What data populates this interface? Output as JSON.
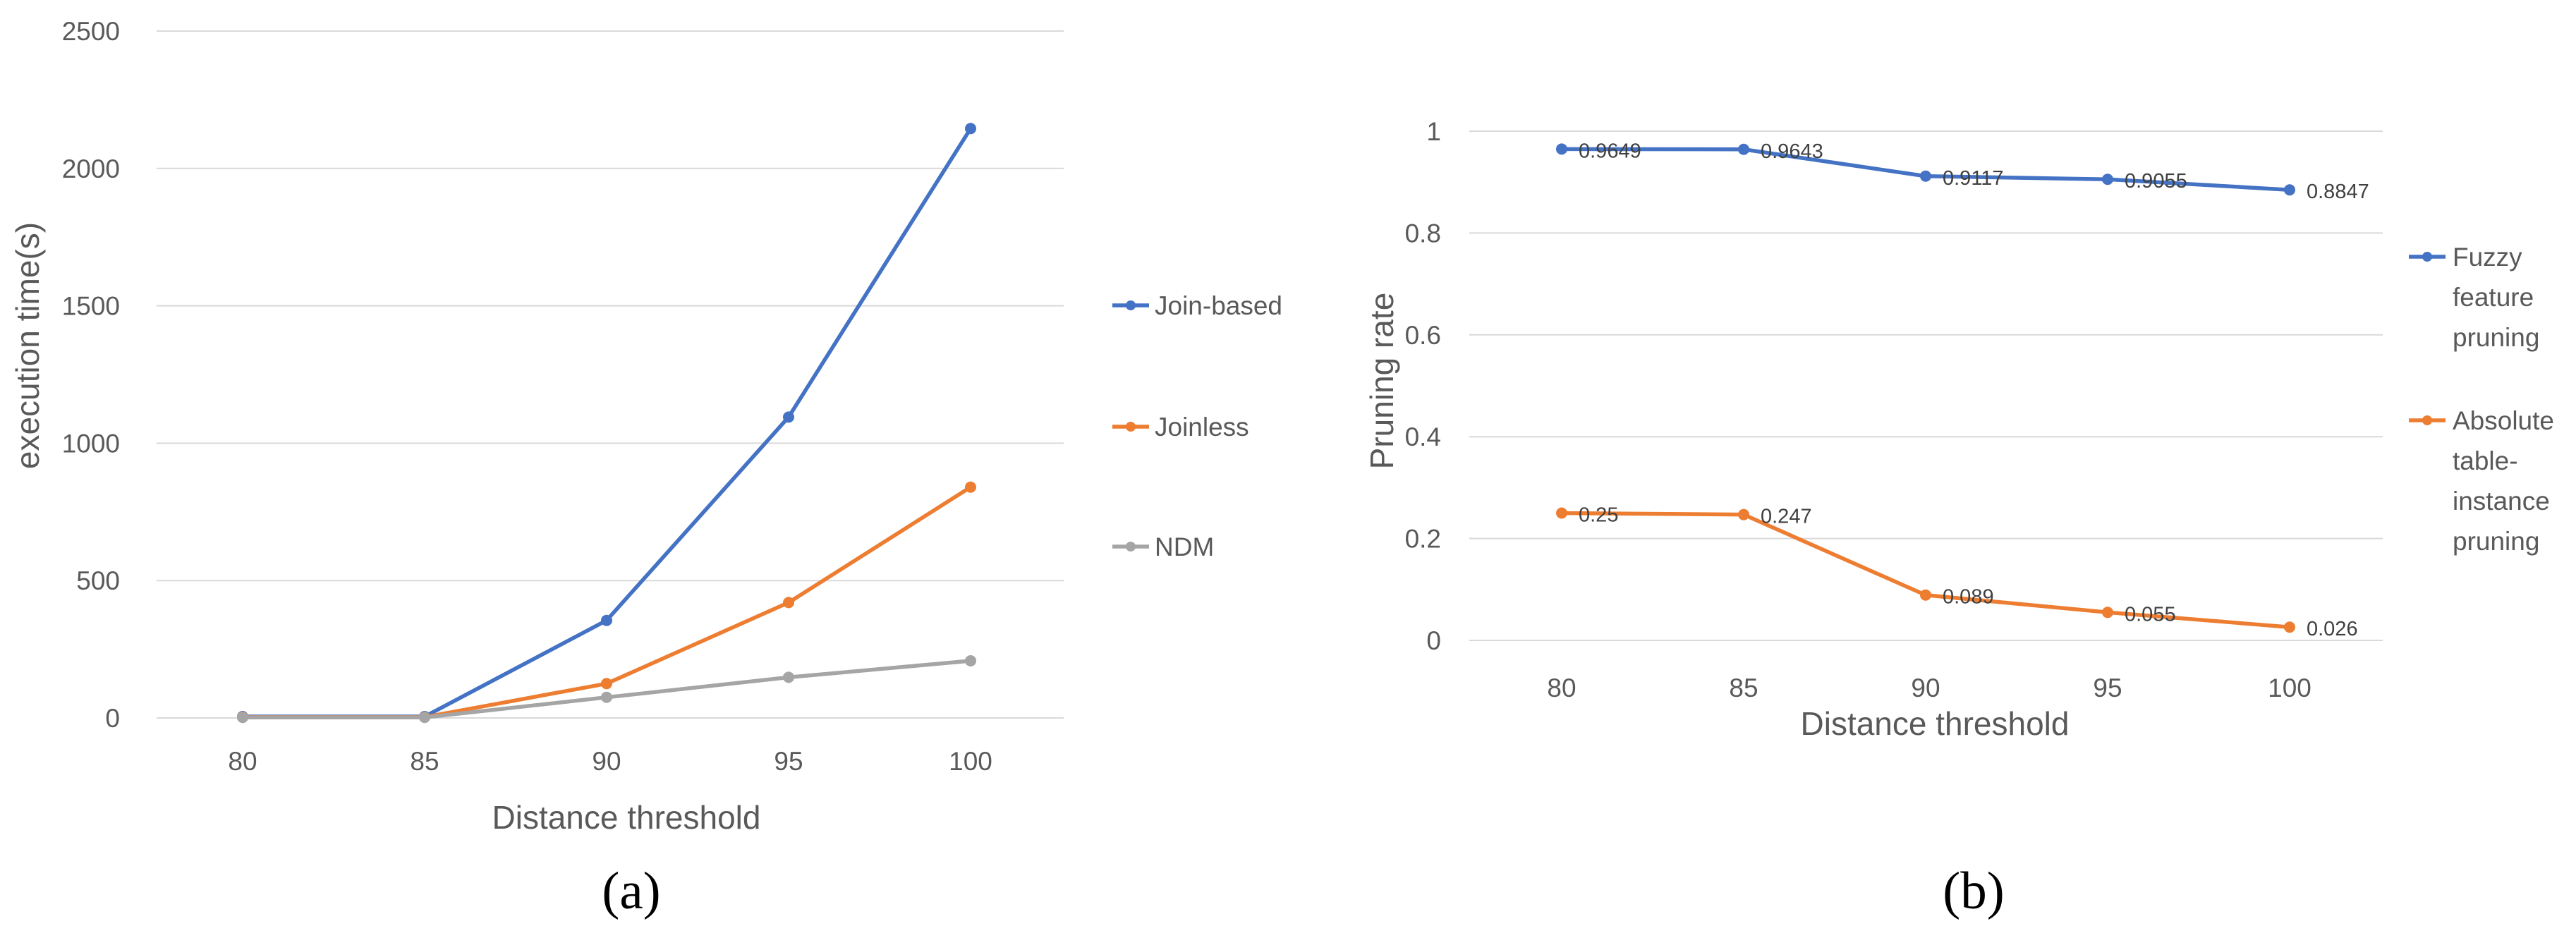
{
  "chart_data": [
    {
      "type": "line",
      "panel_label": "(a)",
      "title": "",
      "xlabel": "Distance threshold",
      "ylabel": "execution time(s)",
      "categories": [
        "80",
        "85",
        "90",
        "95",
        "100"
      ],
      "ylim": [
        0,
        2500
      ],
      "yticks": [
        "0",
        "500",
        "1000",
        "1500",
        "2000",
        "2500"
      ],
      "grid": true,
      "legend_position": "right",
      "series": [
        {
          "name": "Join-based",
          "color": "#4472C4",
          "values": [
            5,
            5,
            355,
            1095,
            2145
          ]
        },
        {
          "name": "Joinless",
          "color": "#ED7D31",
          "values": [
            3,
            3,
            125,
            420,
            840
          ]
        },
        {
          "name": "NDM",
          "color": "#A5A5A5",
          "values": [
            2,
            2,
            75,
            148,
            208
          ]
        }
      ]
    },
    {
      "type": "line",
      "panel_label": "(b)",
      "title": "",
      "xlabel": "Distance threshold",
      "ylabel": "Pruning rate",
      "categories": [
        "80",
        "85",
        "90",
        "95",
        "100"
      ],
      "ylim": [
        0,
        1
      ],
      "yticks": [
        "0",
        "0.2",
        "0.4",
        "0.6",
        "0.8",
        "1"
      ],
      "grid": true,
      "legend_position": "right",
      "series": [
        {
          "name": [
            "Fuzzy",
            "feature",
            "pruning"
          ],
          "color": "#4472C4",
          "values": [
            0.9649,
            0.9643,
            0.9117,
            0.9055,
            0.8847
          ],
          "labels": [
            "0.9649",
            "0.9643",
            "0.9117",
            "0.9055",
            "0.8847"
          ]
        },
        {
          "name": [
            "Absolute",
            "table-",
            "instance",
            "pruning"
          ],
          "color": "#ED7D31",
          "values": [
            0.25,
            0.247,
            0.089,
            0.055,
            0.026
          ],
          "labels": [
            "0.25",
            "0.247",
            "0.089",
            "0.055",
            "0.026"
          ]
        }
      ]
    }
  ]
}
